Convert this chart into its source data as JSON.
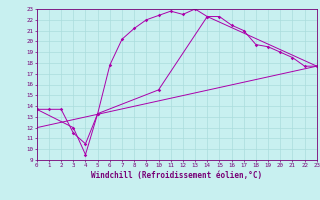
{
  "xlabel": "Windchill (Refroidissement éolien,°C)",
  "bg_color": "#c8f0f0",
  "grid_color": "#aadddd",
  "line_color": "#aa00aa",
  "spine_color": "#770077",
  "tick_color": "#770077",
  "xlim": [
    0,
    23
  ],
  "ylim": [
    9,
    23
  ],
  "xticks": [
    0,
    1,
    2,
    3,
    4,
    5,
    6,
    7,
    8,
    9,
    10,
    11,
    12,
    13,
    14,
    15,
    16,
    17,
    18,
    19,
    20,
    21,
    22,
    23
  ],
  "yticks": [
    9,
    10,
    11,
    12,
    13,
    14,
    15,
    16,
    17,
    18,
    19,
    20,
    21,
    22,
    23
  ],
  "line1_x": [
    0,
    1,
    2,
    3,
    4,
    5,
    6,
    7,
    8,
    9,
    10,
    11,
    12,
    13,
    14,
    15,
    16,
    17,
    18,
    19,
    20,
    21,
    22,
    23
  ],
  "line1_y": [
    13.7,
    13.7,
    13.7,
    11.5,
    10.5,
    13.3,
    17.8,
    20.2,
    21.2,
    22.0,
    22.4,
    22.8,
    22.5,
    23.0,
    22.3,
    22.3,
    21.5,
    21.0,
    19.7,
    19.5,
    19.0,
    18.5,
    17.7,
    17.7
  ],
  "line2_x": [
    0,
    3,
    4,
    5,
    10,
    14,
    23
  ],
  "line2_y": [
    13.7,
    12.0,
    9.5,
    13.3,
    15.5,
    22.3,
    17.7
  ],
  "line3_x": [
    0,
    23
  ],
  "line3_y": [
    12.0,
    17.7
  ],
  "xlabel_fontsize": 5.5,
  "tick_fontsize": 4.2
}
